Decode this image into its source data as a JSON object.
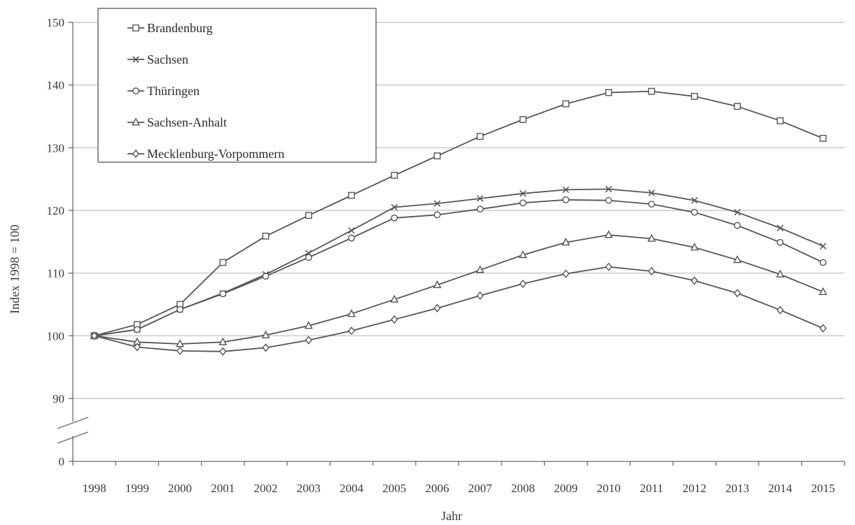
{
  "chart_data": {
    "type": "line",
    "xlabel": "Jahr",
    "ylabel": "Index 1998 = 100",
    "x": [
      "1998",
      "1999",
      "2000",
      "2001",
      "2002",
      "2003",
      "2004",
      "2005",
      "2006",
      "2007",
      "2008",
      "2009",
      "2010",
      "2011",
      "2012",
      "2013",
      "2014",
      "2015"
    ],
    "y_ticks": [
      0,
      90,
      100,
      110,
      120,
      130,
      140,
      150
    ],
    "ylim": [
      85,
      150
    ],
    "axis_break": true,
    "grid": true,
    "legend_position": "top-left",
    "series": [
      {
        "name": "Brandenburg",
        "marker": "square",
        "values": [
          100,
          101.8,
          105.0,
          111.7,
          115.9,
          119.2,
          122.4,
          125.6,
          128.7,
          131.8,
          134.5,
          137.0,
          138.8,
          139.0,
          138.2,
          136.6,
          134.3,
          131.5
        ]
      },
      {
        "name": "Sachsen",
        "marker": "x",
        "values": [
          100,
          101.0,
          104.2,
          106.8,
          109.8,
          113.2,
          116.8,
          120.5,
          121.1,
          121.9,
          122.7,
          123.3,
          123.4,
          122.8,
          121.6,
          119.7,
          117.2,
          114.3
        ]
      },
      {
        "name": "Thüringen",
        "marker": "circle",
        "values": [
          100,
          101.0,
          104.2,
          106.7,
          109.5,
          112.5,
          115.6,
          118.8,
          119.3,
          120.2,
          121.2,
          121.7,
          121.6,
          121.0,
          119.7,
          117.6,
          114.9,
          111.7
        ]
      },
      {
        "name": "Sachsen-Anhalt",
        "marker": "triangle",
        "values": [
          100,
          99.0,
          98.7,
          99.0,
          100.1,
          101.6,
          103.5,
          105.8,
          108.1,
          110.5,
          112.9,
          114.9,
          116.1,
          115.5,
          114.1,
          112.1,
          109.8,
          107.0
        ]
      },
      {
        "name": "Mecklenburg-Vorpommern",
        "marker": "diamond",
        "values": [
          100,
          98.2,
          97.6,
          97.5,
          98.1,
          99.3,
          100.8,
          102.6,
          104.4,
          106.4,
          108.3,
          109.9,
          111.0,
          110.3,
          108.8,
          106.8,
          104.1,
          101.2
        ]
      }
    ]
  }
}
